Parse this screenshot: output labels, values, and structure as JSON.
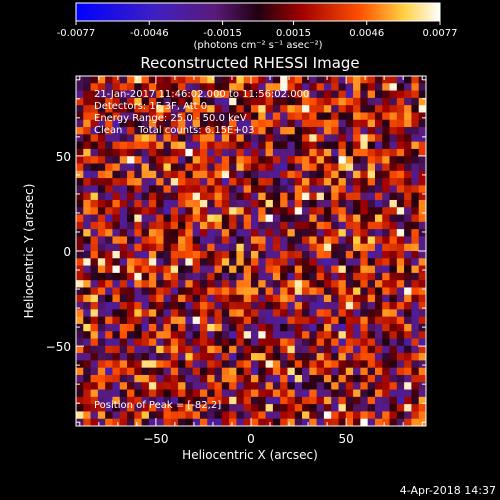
{
  "chart_data": {
    "type": "heatmap",
    "title": "Reconstructed RHESSI Image",
    "xlabel": "Heliocentric X (arcsec)",
    "ylabel": "Heliocentric Y (arcsec)",
    "xlim": [
      -92,
      92
    ],
    "ylim": [
      -92,
      92
    ],
    "x_ticks": [
      -50,
      0,
      50
    ],
    "y_ticks": [
      -50,
      0,
      50
    ],
    "grid": false,
    "colorbar": {
      "ticks": [
        "-0.0077",
        "-0.0046",
        "-0.0015",
        "0.0015",
        "0.0046",
        "0.0077"
      ],
      "range": [
        -0.0077,
        0.0077
      ],
      "unit_label": "(photons cm⁻² s⁻¹ asec⁻²)",
      "colors": [
        "#0000ff",
        "#5a1a9a",
        "#000000",
        "#b00000",
        "#ff6000",
        "#ffff60",
        "#ffffff"
      ]
    },
    "annotations": [
      "21-Jan-2017 11:46:02.000 to 11:56:02.000",
      "Detectors: 1F 3F, Att 0",
      "Energy Range: 25.0 - 50.0 keV",
      "Clean     Total counts: 6.15E+03"
    ],
    "peak_label": "Position of Peak = [-82,2]",
    "grid_cells": 48,
    "seed": 20170121
  },
  "footer": {
    "date": "4-Apr-2018 14:37"
  }
}
